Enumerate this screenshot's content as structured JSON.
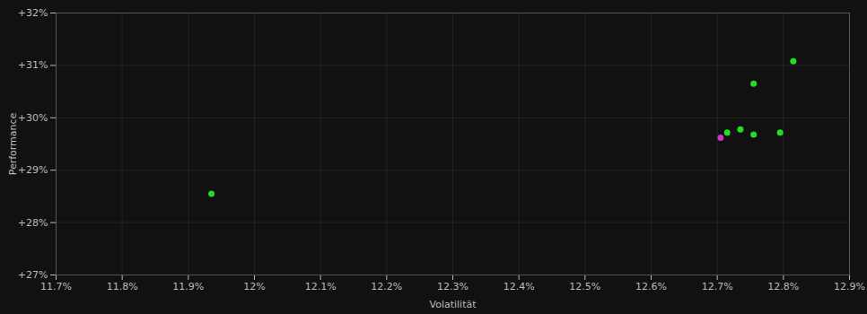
{
  "chart_data": {
    "type": "scatter",
    "xlabel": "Volatilität",
    "ylabel": "Performance",
    "series": [
      {
        "color": "#22dd22",
        "x": [
          0.11935,
          0.12715,
          0.12735,
          0.12755,
          0.12795,
          0.12755,
          0.12815
        ],
        "y": [
          0.2855,
          0.2972,
          0.2978,
          0.2968,
          0.2972,
          0.3065,
          0.3108
        ]
      },
      {
        "color": "#cc33cc",
        "x": [
          0.12705
        ],
        "y": [
          0.2962
        ]
      }
    ],
    "xlim": [
      0.117,
      0.129
    ],
    "ylim": [
      0.27,
      0.32
    ],
    "xticks": [
      {
        "value": 0.117,
        "label": "11.7%"
      },
      {
        "value": 0.118,
        "label": "11.8%"
      },
      {
        "value": 0.119,
        "label": "11.9%"
      },
      {
        "value": 0.12,
        "label": "12%"
      },
      {
        "value": 0.121,
        "label": "12.1%"
      },
      {
        "value": 0.122,
        "label": "12.2%"
      },
      {
        "value": 0.123,
        "label": "12.3%"
      },
      {
        "value": 0.124,
        "label": "12.4%"
      },
      {
        "value": 0.125,
        "label": "12.5%"
      },
      {
        "value": 0.126,
        "label": "12.6%"
      },
      {
        "value": 0.127,
        "label": "12.7%"
      },
      {
        "value": 0.128,
        "label": "12.8%"
      },
      {
        "value": 0.129,
        "label": "12.9%"
      }
    ],
    "yticks": [
      {
        "value": 0.27,
        "label": "+27%"
      },
      {
        "value": 0.28,
        "label": "+28%"
      },
      {
        "value": 0.29,
        "label": "+29%"
      },
      {
        "value": 0.3,
        "label": "+30%"
      },
      {
        "value": 0.31,
        "label": "+31%"
      },
      {
        "value": 0.32,
        "label": "+32%"
      }
    ],
    "grid": true
  }
}
